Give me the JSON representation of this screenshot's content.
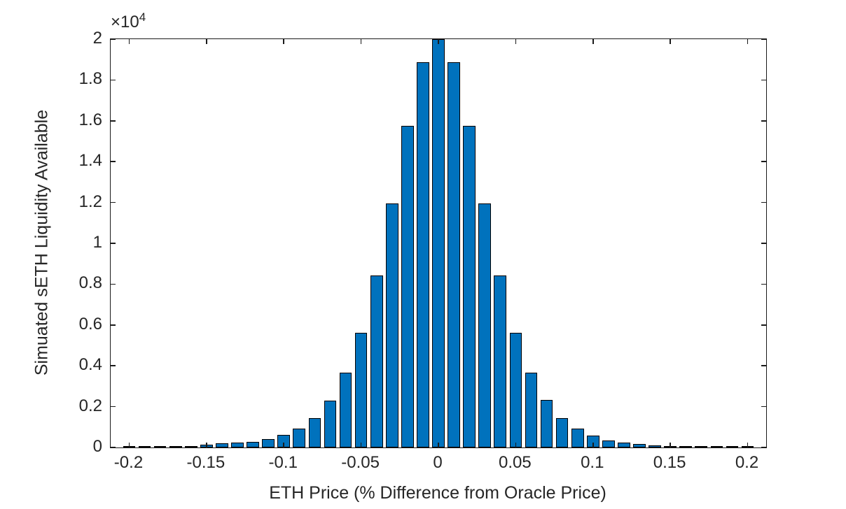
{
  "figure": {
    "background": "#ffffff"
  },
  "chart_data": {
    "type": "bar",
    "title": "",
    "xlabel": "ETH Price (% Difference from Oracle Price)",
    "ylabel": "Simuated sETH Liquidity Available",
    "y_exponent_base": "×10",
    "y_exponent_power": "4",
    "bar_color": "#0072BD",
    "bar_edge_color": "#000000",
    "axis_color": "#1a1a1a",
    "text_color": "#262626",
    "grid": false,
    "legend": null,
    "bin_width": 0.01,
    "bar_rel_width": 0.8,
    "xlim": [
      -0.212,
      0.212
    ],
    "ylim": [
      0,
      20000
    ],
    "x_ticks": [
      -0.2,
      -0.15,
      -0.1,
      -0.05,
      0,
      0.05,
      0.1,
      0.15,
      0.2
    ],
    "x_tick_labels": [
      "-0.2",
      "-0.15",
      "-0.1",
      "-0.05",
      "0",
      "0.05",
      "0.1",
      "0.15",
      "0.2"
    ],
    "y_ticks": [
      0,
      2000,
      4000,
      6000,
      8000,
      10000,
      12000,
      14000,
      16000,
      18000,
      20000
    ],
    "y_tick_labels": [
      "0",
      "0.2",
      "0.4",
      "0.6",
      "0.8",
      "1",
      "1.2",
      "1.4",
      "1.6",
      "1.8",
      "2"
    ],
    "x": [
      -0.2,
      -0.19,
      -0.18,
      -0.17,
      -0.16,
      -0.15,
      -0.14,
      -0.13,
      -0.12,
      -0.11,
      -0.1,
      -0.09,
      -0.08,
      -0.07,
      -0.06,
      -0.05,
      -0.04,
      -0.03,
      -0.02,
      -0.01,
      0,
      0.01,
      0.02,
      0.03,
      0.04,
      0.05,
      0.06,
      0.07,
      0.08,
      0.09,
      0.1,
      0.11,
      0.12,
      0.13,
      0.14,
      0.15,
      0.16,
      0.17,
      0.18,
      0.19,
      0.2
    ],
    "values": [
      50,
      45,
      45,
      55,
      60,
      125,
      190,
      240,
      280,
      420,
      615,
      935,
      1450,
      2310,
      3670,
      5610,
      8410,
      11950,
      15750,
      18860,
      20000,
      18860,
      15750,
      11950,
      8415,
      5600,
      3675,
      2330,
      1440,
      930,
      570,
      330,
      230,
      160,
      105,
      70,
      45,
      40,
      35,
      35,
      35
    ]
  }
}
